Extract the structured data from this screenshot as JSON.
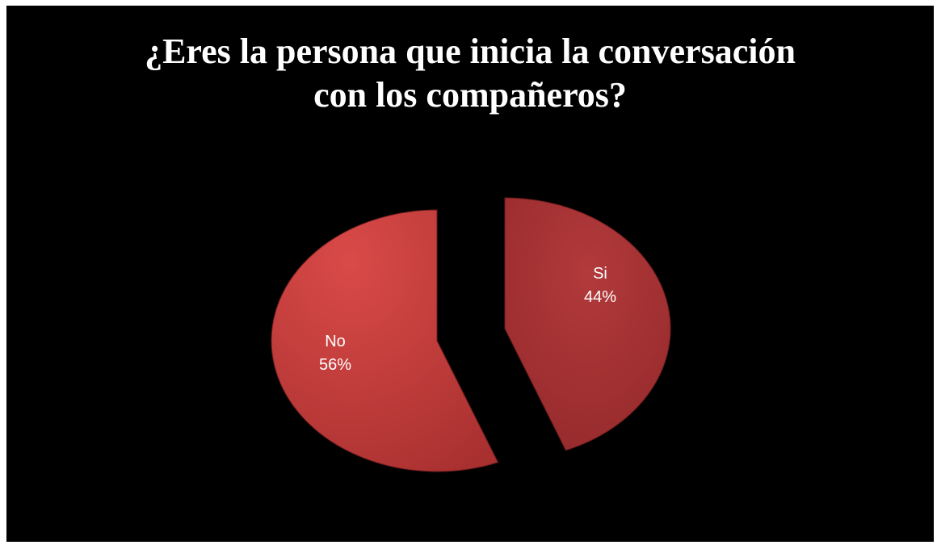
{
  "title_lines": [
    "¿Eres la persona que inicia la conversación",
    "con los compañeros?"
  ],
  "chart_data": {
    "type": "pie",
    "title": "¿Eres la persona que inicia la conversación con los compañeros?",
    "slices": [
      {
        "label": "Si",
        "percent_label": "44%",
        "value": 44,
        "color": "#b0363a"
      },
      {
        "label": "No",
        "percent_label": "56%",
        "value": 56,
        "color": "#c23c3d"
      }
    ],
    "exploded": true,
    "legend": "none"
  }
}
